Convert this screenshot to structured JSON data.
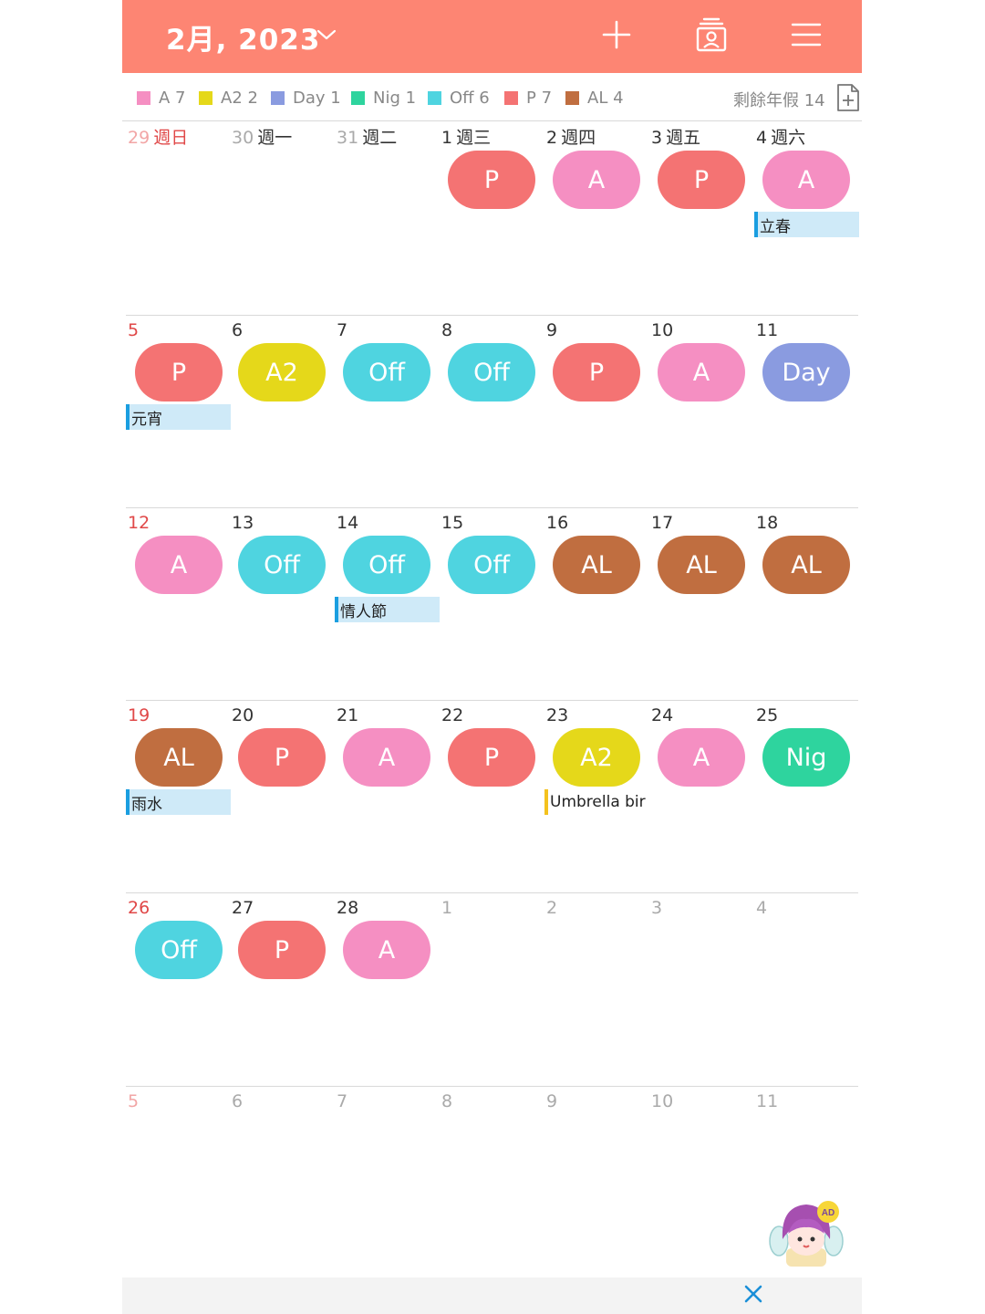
{
  "header": {
    "month_title": "2月, 2023",
    "bg_color": "#fd8573",
    "icons": [
      "chevron-down-icon",
      "plus-icon",
      "contact-card-icon",
      "menu-icon"
    ]
  },
  "legend": [
    {
      "label": "A 7",
      "color": "#f58fc2"
    },
    {
      "label": "A2 2",
      "color": "#e5d81a"
    },
    {
      "label": "Day 1",
      "color": "#8a9be0"
    },
    {
      "label": "Nig 1",
      "color": "#2ed49e"
    },
    {
      "label": "Off 6",
      "color": "#4fd4e0"
    },
    {
      "label": "P 7",
      "color": "#f47373"
    },
    {
      "label": "AL 4",
      "color": "#c06e40"
    }
  ],
  "leave_remaining": "剩餘年假 14",
  "weeks": [
    {
      "days": [
        {
          "num": "29",
          "wd": "週日",
          "style": "fade-red"
        },
        {
          "num": "30",
          "wd": "週一",
          "style": "grey"
        },
        {
          "num": "31",
          "wd": "週二",
          "style": "grey"
        },
        {
          "num": "1",
          "wd": "週三",
          "style": "normal",
          "shift": "P"
        },
        {
          "num": "2",
          "wd": "週四",
          "style": "normal",
          "shift": "A"
        },
        {
          "num": "3",
          "wd": "週五",
          "style": "normal",
          "shift": "P"
        },
        {
          "num": "4",
          "wd": "週六",
          "style": "normal",
          "shift": "A",
          "event": "立春"
        }
      ]
    },
    {
      "days": [
        {
          "num": "5",
          "style": "red",
          "shift": "P",
          "event": "元宵"
        },
        {
          "num": "6",
          "style": "normal",
          "shift": "A2"
        },
        {
          "num": "7",
          "style": "normal",
          "shift": "Off"
        },
        {
          "num": "8",
          "style": "normal",
          "shift": "Off"
        },
        {
          "num": "9",
          "style": "normal",
          "shift": "P"
        },
        {
          "num": "10",
          "style": "normal",
          "shift": "A"
        },
        {
          "num": "11",
          "style": "normal",
          "shift": "Day"
        }
      ]
    },
    {
      "days": [
        {
          "num": "12",
          "style": "red",
          "shift": "A"
        },
        {
          "num": "13",
          "style": "normal",
          "shift": "Off"
        },
        {
          "num": "14",
          "style": "normal",
          "shift": "Off",
          "event": "情人節"
        },
        {
          "num": "15",
          "style": "normal",
          "shift": "Off"
        },
        {
          "num": "16",
          "style": "normal",
          "shift": "AL"
        },
        {
          "num": "17",
          "style": "normal",
          "shift": "AL"
        },
        {
          "num": "18",
          "style": "normal",
          "shift": "AL"
        }
      ]
    },
    {
      "days": [
        {
          "num": "19",
          "style": "red",
          "shift": "AL",
          "event": "雨水"
        },
        {
          "num": "20",
          "style": "normal",
          "shift": "P"
        },
        {
          "num": "21",
          "style": "normal",
          "shift": "A"
        },
        {
          "num": "22",
          "style": "normal",
          "shift": "P"
        },
        {
          "num": "23",
          "style": "normal",
          "shift": "A2",
          "event": "Umbrella bir",
          "event_style": "plain"
        },
        {
          "num": "24",
          "style": "normal",
          "shift": "A"
        },
        {
          "num": "25",
          "style": "normal",
          "shift": "Nig"
        }
      ]
    },
    {
      "days": [
        {
          "num": "26",
          "style": "red",
          "shift": "Off"
        },
        {
          "num": "27",
          "style": "normal",
          "shift": "P"
        },
        {
          "num": "28",
          "style": "normal",
          "shift": "A"
        },
        {
          "num": "1",
          "style": "grey"
        },
        {
          "num": "2",
          "style": "grey"
        },
        {
          "num": "3",
          "style": "grey"
        },
        {
          "num": "4",
          "style": "grey"
        }
      ]
    },
    {
      "days": [
        {
          "num": "5",
          "style": "fade-red"
        },
        {
          "num": "6",
          "style": "grey"
        },
        {
          "num": "7",
          "style": "grey"
        },
        {
          "num": "8",
          "style": "grey"
        },
        {
          "num": "9",
          "style": "grey"
        },
        {
          "num": "10",
          "style": "grey"
        },
        {
          "num": "11",
          "style": "grey"
        }
      ]
    }
  ],
  "shift_colors": {
    "A": "#f58fc2",
    "A2": "#e5d81a",
    "Day": "#8a9be0",
    "Nig": "#2ed49e",
    "Off": "#4fd4e0",
    "P": "#f47373",
    "AL": "#c06e40"
  },
  "ad": {
    "badge": "AD",
    "close_icon": "close-icon"
  }
}
